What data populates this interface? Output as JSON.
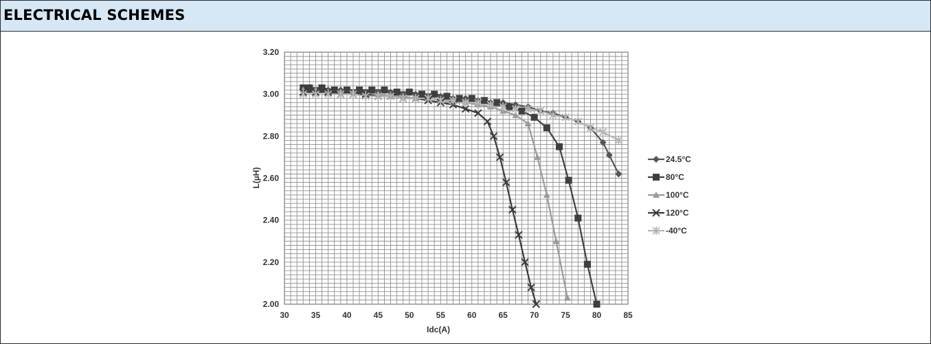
{
  "header": {
    "title": "ELECTRICAL SCHEMES"
  },
  "chart_data": {
    "type": "line",
    "title": "",
    "xlabel": "Idc(A)",
    "ylabel": "L(µH)",
    "xlim": [
      30,
      85
    ],
    "ylim": [
      2.0,
      3.2
    ],
    "xticks": [
      30,
      35,
      40,
      45,
      50,
      55,
      60,
      65,
      70,
      75,
      80,
      85
    ],
    "yticks": [
      "2.00",
      "2.20",
      "2.40",
      "2.60",
      "2.80",
      "3.00",
      "3.20"
    ],
    "grid": true,
    "legend_position": "right",
    "series": [
      {
        "name": "24.5°C",
        "marker": "diamond",
        "color": "#555555",
        "x": [
          33,
          35,
          37,
          39,
          41,
          43,
          45,
          47,
          49,
          51,
          53,
          55,
          57,
          59,
          61,
          63,
          65,
          67,
          69,
          71,
          73,
          75,
          77,
          79,
          81,
          82,
          83.5
        ],
        "y": [
          3.02,
          3.02,
          3.02,
          3.02,
          3.01,
          3.01,
          3.01,
          3.01,
          3.0,
          3.0,
          2.99,
          2.99,
          2.98,
          2.98,
          2.97,
          2.96,
          2.96,
          2.95,
          2.94,
          2.92,
          2.91,
          2.89,
          2.87,
          2.84,
          2.77,
          2.71,
          2.62
        ]
      },
      {
        "name": "80°C",
        "marker": "square",
        "color": "#3f3f3f",
        "x": [
          33,
          34,
          36,
          38,
          40,
          42,
          44,
          46,
          48,
          50,
          52,
          54,
          56,
          58,
          60,
          62,
          64,
          66,
          68,
          70,
          72,
          74,
          75.5,
          77,
          78.5,
          80
        ],
        "y": [
          3.03,
          3.03,
          3.03,
          3.02,
          3.02,
          3.02,
          3.02,
          3.02,
          3.01,
          3.01,
          3.0,
          3.0,
          2.99,
          2.98,
          2.98,
          2.97,
          2.96,
          2.94,
          2.92,
          2.89,
          2.84,
          2.75,
          2.59,
          2.41,
          2.19,
          2.0
        ]
      },
      {
        "name": "100°C",
        "marker": "triangle",
        "color": "#9a9a9a",
        "x": [
          33,
          35,
          37,
          39,
          41,
          43,
          45,
          47,
          49,
          51,
          53,
          55,
          57,
          59,
          61,
          63,
          65,
          67,
          69,
          70.5,
          72,
          73.5,
          75.3
        ],
        "y": [
          3.02,
          3.02,
          3.01,
          3.01,
          3.01,
          3.0,
          3.0,
          2.99,
          2.99,
          2.98,
          2.98,
          2.97,
          2.96,
          2.96,
          2.95,
          2.94,
          2.92,
          2.9,
          2.86,
          2.7,
          2.52,
          2.3,
          2.03
        ]
      },
      {
        "name": "120°C",
        "marker": "cross",
        "color": "#3a3a3a",
        "x": [
          33,
          35,
          37,
          39,
          41,
          43,
          45,
          47,
          49,
          51,
          53,
          55,
          57,
          59,
          61,
          62.5,
          63.5,
          64.5,
          65.5,
          66.5,
          67.5,
          68.5,
          69.5,
          70.3
        ],
        "y": [
          3.01,
          3.01,
          3.01,
          3.0,
          3.0,
          3.0,
          2.99,
          2.99,
          2.98,
          2.98,
          2.97,
          2.96,
          2.95,
          2.93,
          2.91,
          2.87,
          2.8,
          2.7,
          2.58,
          2.45,
          2.33,
          2.2,
          2.08,
          2.0
        ]
      },
      {
        "name": "-40°C",
        "marker": "star",
        "color": "#b5b5b5",
        "x": [
          33,
          35,
          37,
          39,
          41,
          43,
          45,
          47,
          49,
          51,
          53,
          55,
          57,
          59,
          61,
          63,
          65,
          67,
          69,
          71,
          73,
          75,
          77,
          79,
          81,
          83.5
        ],
        "y": [
          3.0,
          3.0,
          3.0,
          3.0,
          3.0,
          2.99,
          2.99,
          2.99,
          2.98,
          2.98,
          2.98,
          2.97,
          2.97,
          2.96,
          2.96,
          2.95,
          2.94,
          2.93,
          2.93,
          2.92,
          2.9,
          2.89,
          2.87,
          2.84,
          2.82,
          2.78
        ]
      }
    ]
  }
}
